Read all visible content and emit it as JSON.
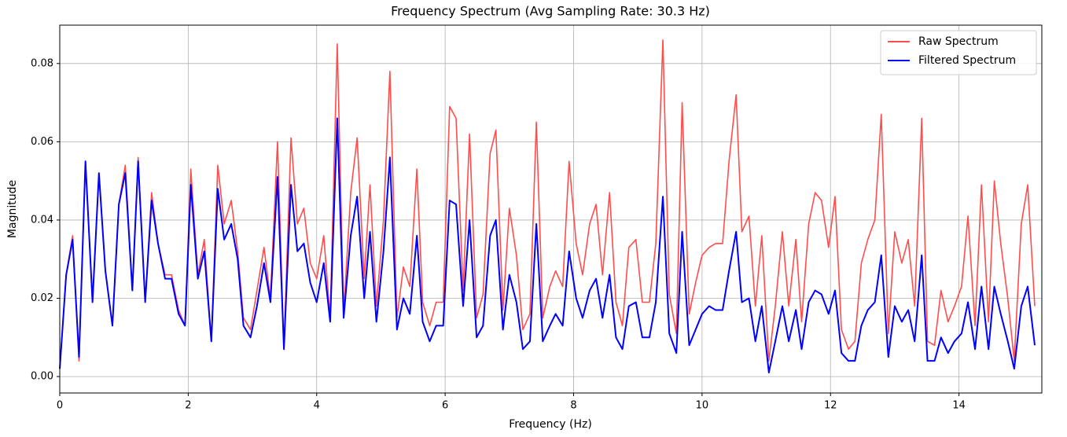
{
  "chart_data": {
    "type": "line",
    "title": "Frequency Spectrum (Avg Sampling Rate: 30.3 Hz)",
    "x_label": "Frequency (Hz)",
    "y_label": "Magnitude",
    "x": [
      0,
      0.1,
      0.2,
      0.3,
      0.4,
      0.51,
      0.61,
      0.71,
      0.82,
      0.92,
      1.02,
      1.13,
      1.22,
      1.33,
      1.43,
      1.53,
      1.64,
      1.74,
      1.85,
      1.95,
      2.04,
      2.15,
      2.25,
      2.36,
      2.46,
      2.56,
      2.67,
      2.77,
      2.86,
      2.97,
      3.07,
      3.18,
      3.28,
      3.39,
      3.49,
      3.6,
      3.7,
      3.8,
      3.9,
      4,
      4.11,
      4.21,
      4.32,
      4.42,
      4.53,
      4.63,
      4.74,
      4.83,
      4.93,
      5.04,
      5.14,
      5.25,
      5.35,
      5.45,
      5.56,
      5.65,
      5.76,
      5.86,
      5.97,
      6.07,
      6.17,
      6.28,
      6.38,
      6.49,
      6.59,
      6.7,
      6.79,
      6.9,
      7,
      7.11,
      7.21,
      7.32,
      7.42,
      7.52,
      7.63,
      7.72,
      7.83,
      7.93,
      8.04,
      8.14,
      8.25,
      8.35,
      8.45,
      8.56,
      8.66,
      8.76,
      8.86,
      8.97,
      9.07,
      9.18,
      9.28,
      9.39,
      9.49,
      9.6,
      9.69,
      9.8,
      9.9,
      10,
      10.11,
      10.21,
      10.32,
      10.42,
      10.53,
      10.62,
      10.73,
      10.83,
      10.93,
      11.04,
      11.14,
      11.25,
      11.35,
      11.46,
      11.55,
      11.66,
      11.76,
      11.86,
      11.97,
      12.07,
      12.17,
      12.28,
      12.38,
      12.48,
      12.58,
      12.69,
      12.79,
      12.9,
      13,
      13.11,
      13.21,
      13.31,
      13.42,
      13.51,
      13.62,
      13.72,
      13.83,
      13.93,
      14.04,
      14.14,
      14.25,
      14.35,
      14.46,
      14.55,
      14.65,
      14.76,
      14.86,
      14.97,
      15.07,
      15.18
    ],
    "series": [
      {
        "name": "Raw Spectrum",
        "color": "#ff4c4c",
        "values": [
          0.002,
          0.026,
          0.036,
          0.004,
          0.055,
          0.019,
          0.052,
          0.027,
          0.013,
          0.044,
          0.054,
          0.022,
          0.056,
          0.019,
          0.047,
          0.034,
          0.026,
          0.026,
          0.017,
          0.013,
          0.053,
          0.026,
          0.035,
          0.009,
          0.054,
          0.039,
          0.045,
          0.032,
          0.015,
          0.012,
          0.022,
          0.033,
          0.02,
          0.06,
          0.007,
          0.061,
          0.039,
          0.043,
          0.029,
          0.025,
          0.036,
          0.015,
          0.085,
          0.016,
          0.047,
          0.061,
          0.025,
          0.049,
          0.018,
          0.04,
          0.078,
          0.015,
          0.028,
          0.023,
          0.053,
          0.019,
          0.013,
          0.019,
          0.019,
          0.069,
          0.066,
          0.022,
          0.062,
          0.015,
          0.021,
          0.057,
          0.063,
          0.017,
          0.043,
          0.031,
          0.012,
          0.016,
          0.065,
          0.015,
          0.023,
          0.027,
          0.023,
          0.055,
          0.034,
          0.026,
          0.039,
          0.044,
          0.026,
          0.047,
          0.019,
          0.013,
          0.033,
          0.035,
          0.019,
          0.019,
          0.034,
          0.086,
          0.021,
          0.011,
          0.07,
          0.016,
          0.024,
          0.031,
          0.033,
          0.034,
          0.034,
          0.055,
          0.072,
          0.037,
          0.041,
          0.018,
          0.036,
          0.004,
          0.018,
          0.037,
          0.018,
          0.035,
          0.014,
          0.039,
          0.047,
          0.045,
          0.033,
          0.046,
          0.012,
          0.007,
          0.009,
          0.029,
          0.035,
          0.04,
          0.067,
          0.011,
          0.037,
          0.029,
          0.035,
          0.018,
          0.066,
          0.009,
          0.008,
          0.022,
          0.014,
          0.018,
          0.023,
          0.041,
          0.013,
          0.049,
          0.014,
          0.05,
          0.034,
          0.02,
          0.004,
          0.039,
          0.049,
          0.018
        ]
      },
      {
        "name": "Filtered Spectrum",
        "color": "#0000ff",
        "values": [
          0.002,
          0.026,
          0.035,
          0.005,
          0.055,
          0.019,
          0.052,
          0.027,
          0.013,
          0.044,
          0.052,
          0.022,
          0.055,
          0.019,
          0.045,
          0.034,
          0.025,
          0.025,
          0.016,
          0.013,
          0.049,
          0.025,
          0.032,
          0.009,
          0.048,
          0.035,
          0.039,
          0.03,
          0.013,
          0.01,
          0.018,
          0.029,
          0.019,
          0.051,
          0.007,
          0.049,
          0.032,
          0.034,
          0.024,
          0.019,
          0.029,
          0.014,
          0.066,
          0.015,
          0.036,
          0.046,
          0.02,
          0.037,
          0.014,
          0.032,
          0.056,
          0.012,
          0.02,
          0.016,
          0.036,
          0.014,
          0.009,
          0.013,
          0.013,
          0.045,
          0.044,
          0.018,
          0.04,
          0.01,
          0.013,
          0.036,
          0.04,
          0.012,
          0.026,
          0.019,
          0.007,
          0.009,
          0.039,
          0.009,
          0.013,
          0.016,
          0.013,
          0.032,
          0.02,
          0.015,
          0.022,
          0.025,
          0.015,
          0.026,
          0.01,
          0.007,
          0.018,
          0.019,
          0.01,
          0.01,
          0.019,
          0.046,
          0.011,
          0.006,
          0.037,
          0.008,
          0.012,
          0.016,
          0.018,
          0.017,
          0.017,
          0.027,
          0.037,
          0.019,
          0.02,
          0.009,
          0.018,
          0.001,
          0.009,
          0.018,
          0.009,
          0.017,
          0.007,
          0.019,
          0.022,
          0.021,
          0.016,
          0.022,
          0.006,
          0.004,
          0.004,
          0.013,
          0.017,
          0.019,
          0.031,
          0.005,
          0.018,
          0.014,
          0.017,
          0.009,
          0.031,
          0.004,
          0.004,
          0.01,
          0.006,
          0.009,
          0.011,
          0.019,
          0.007,
          0.023,
          0.007,
          0.023,
          0.016,
          0.009,
          0.002,
          0.018,
          0.023,
          0.008
        ]
      }
    ],
    "xlim": [
      0,
      15.29
    ],
    "xticks": [
      0,
      2,
      4,
      6,
      8,
      10,
      12,
      14
    ],
    "ylim": [
      -0.0042,
      0.0898
    ],
    "yticks": [
      {
        "value": 0,
        "label": "0.00"
      },
      0.02,
      0.04,
      0.06,
      0.08
    ],
    "grid": true,
    "legend": "upper right"
  }
}
